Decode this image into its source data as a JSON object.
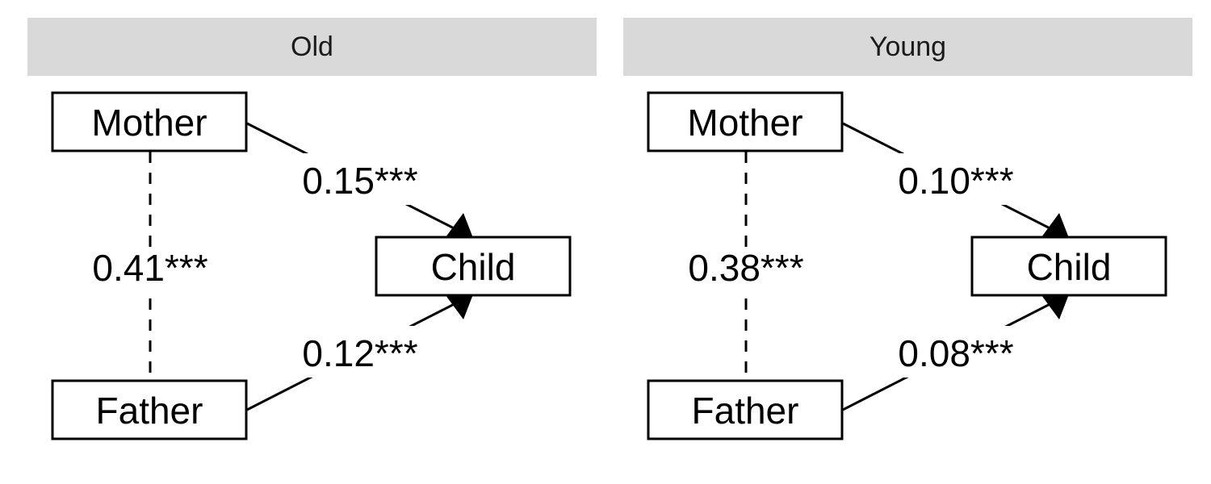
{
  "panels": [
    {
      "strip_label": "Old",
      "nodes": {
        "mother": "Mother",
        "father": "Father",
        "child": "Child"
      },
      "edges": {
        "mother_child": "0.15***",
        "father_child": "0.12***",
        "mother_father": "0.41***"
      }
    },
    {
      "strip_label": "Young",
      "nodes": {
        "mother": "Mother",
        "father": "Father",
        "child": "Child"
      },
      "edges": {
        "mother_child": "0.10***",
        "father_child": "0.08***",
        "mother_father": "0.38***"
      }
    }
  ],
  "colors": {
    "strip_bg": "#d9d9d9",
    "line": "#000000",
    "background": "#ffffff"
  }
}
